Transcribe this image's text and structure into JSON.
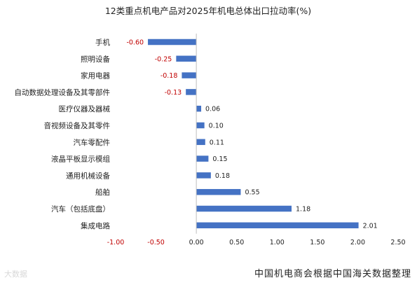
{
  "chart_data": {
    "type": "bar",
    "orientation": "horizontal",
    "title": "12类重点机电产品对2025年机电总体出口拉动率(%)",
    "categories": [
      "手机",
      "照明设备",
      "家用电器",
      "自动数据处理设备及其零部件",
      "医疗仪器及器械",
      "音视频设备及其零件",
      "汽车零配件",
      "液晶平板显示模组",
      "通用机械设备",
      "船舶",
      "汽车（包括底盘）",
      "集成电路"
    ],
    "values": [
      -0.6,
      -0.25,
      -0.18,
      -0.13,
      0.06,
      0.1,
      0.11,
      0.15,
      0.18,
      0.55,
      1.18,
      2.01
    ],
    "value_labels": [
      "-0.60",
      "-0.25",
      "-0.18",
      "-0.13",
      "0.06",
      "0.10",
      "0.11",
      "0.15",
      "0.18",
      "0.55",
      "1.18",
      "2.01"
    ],
    "xlim": [
      -1.0,
      2.5
    ],
    "x_ticks": [
      -1.0,
      -0.5,
      0.0,
      0.5,
      1.0,
      1.5,
      2.0,
      2.5
    ],
    "x_tick_labels": [
      "-1.00",
      "-0.50",
      "0.00",
      "0.50",
      "1.00",
      "1.50",
      "2.00",
      "2.50"
    ],
    "grid": false,
    "colors": {
      "bar": "#4472c4",
      "negative_text": "#c00000",
      "positive_text": "#222222"
    }
  },
  "source": "中国机电商会根据中国海关数据整理",
  "watermark": "大数据"
}
